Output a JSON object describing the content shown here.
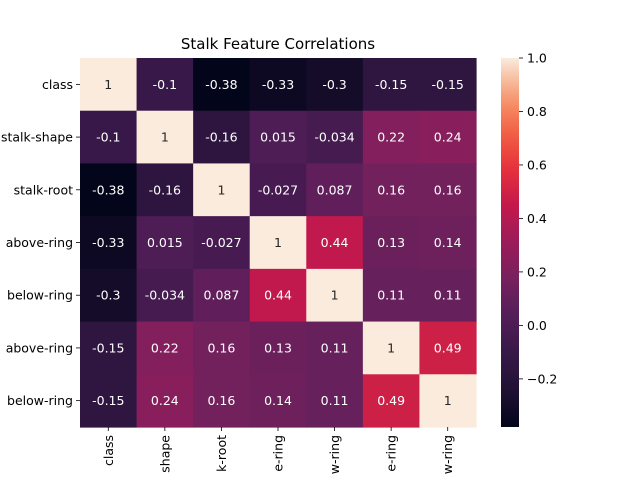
{
  "chart_data": {
    "type": "heatmap",
    "title": "Stalk Feature Correlations",
    "xlabel": "",
    "ylabel": "",
    "row_labels": [
      "class",
      "stalk-shape",
      "stalk-root",
      "above-ring",
      "below-ring",
      "above-ring",
      "below-ring"
    ],
    "col_labels": [
      "class",
      "shape",
      "k-root",
      "e-ring",
      "w-ring",
      "e-ring",
      "w-ring"
    ],
    "values": [
      [
        1,
        -0.1,
        -0.38,
        -0.33,
        -0.3,
        -0.15,
        -0.15
      ],
      [
        -0.1,
        1,
        -0.16,
        0.015,
        -0.034,
        0.22,
        0.24
      ],
      [
        -0.38,
        -0.16,
        1,
        -0.027,
        0.087,
        0.16,
        0.16
      ],
      [
        -0.33,
        0.015,
        -0.027,
        1,
        0.44,
        0.13,
        0.14
      ],
      [
        -0.3,
        -0.034,
        0.087,
        0.44,
        1,
        0.11,
        0.11
      ],
      [
        -0.15,
        0.22,
        0.16,
        0.13,
        0.11,
        1,
        0.49
      ],
      [
        -0.15,
        0.24,
        0.16,
        0.14,
        0.11,
        0.49,
        1
      ]
    ],
    "cell_labels": [
      [
        "1",
        "-0.1",
        "-0.38",
        "-0.33",
        "-0.3",
        "-0.15",
        "-0.15"
      ],
      [
        "-0.1",
        "1",
        "-0.16",
        "0.015",
        "-0.034",
        "0.22",
        "0.24"
      ],
      [
        "-0.38",
        "-0.16",
        "1",
        "-0.027",
        "0.087",
        "0.16",
        "0.16"
      ],
      [
        "-0.33",
        "0.015",
        "-0.027",
        "1",
        "0.44",
        "0.13",
        "0.14"
      ],
      [
        "-0.3",
        "-0.034",
        "0.087",
        "0.44",
        "1",
        "0.11",
        "0.11"
      ],
      [
        "-0.15",
        "0.22",
        "0.16",
        "0.13",
        "0.11",
        "1",
        "0.49"
      ],
      [
        "-0.15",
        "0.24",
        "0.16",
        "0.14",
        "0.11",
        "0.49",
        "1"
      ]
    ],
    "colorbar": {
      "colormap": "rocket",
      "vmin": -0.38,
      "vmax": 1.0,
      "ticks": [
        -0.2,
        0.0,
        0.2,
        0.4,
        0.6,
        0.8,
        1.0
      ],
      "tick_labels": [
        "−0.2",
        "0.0",
        "0.2",
        "0.4",
        "0.6",
        "0.8",
        "1.0"
      ]
    },
    "grid": false,
    "legend": "colorbar-right"
  }
}
